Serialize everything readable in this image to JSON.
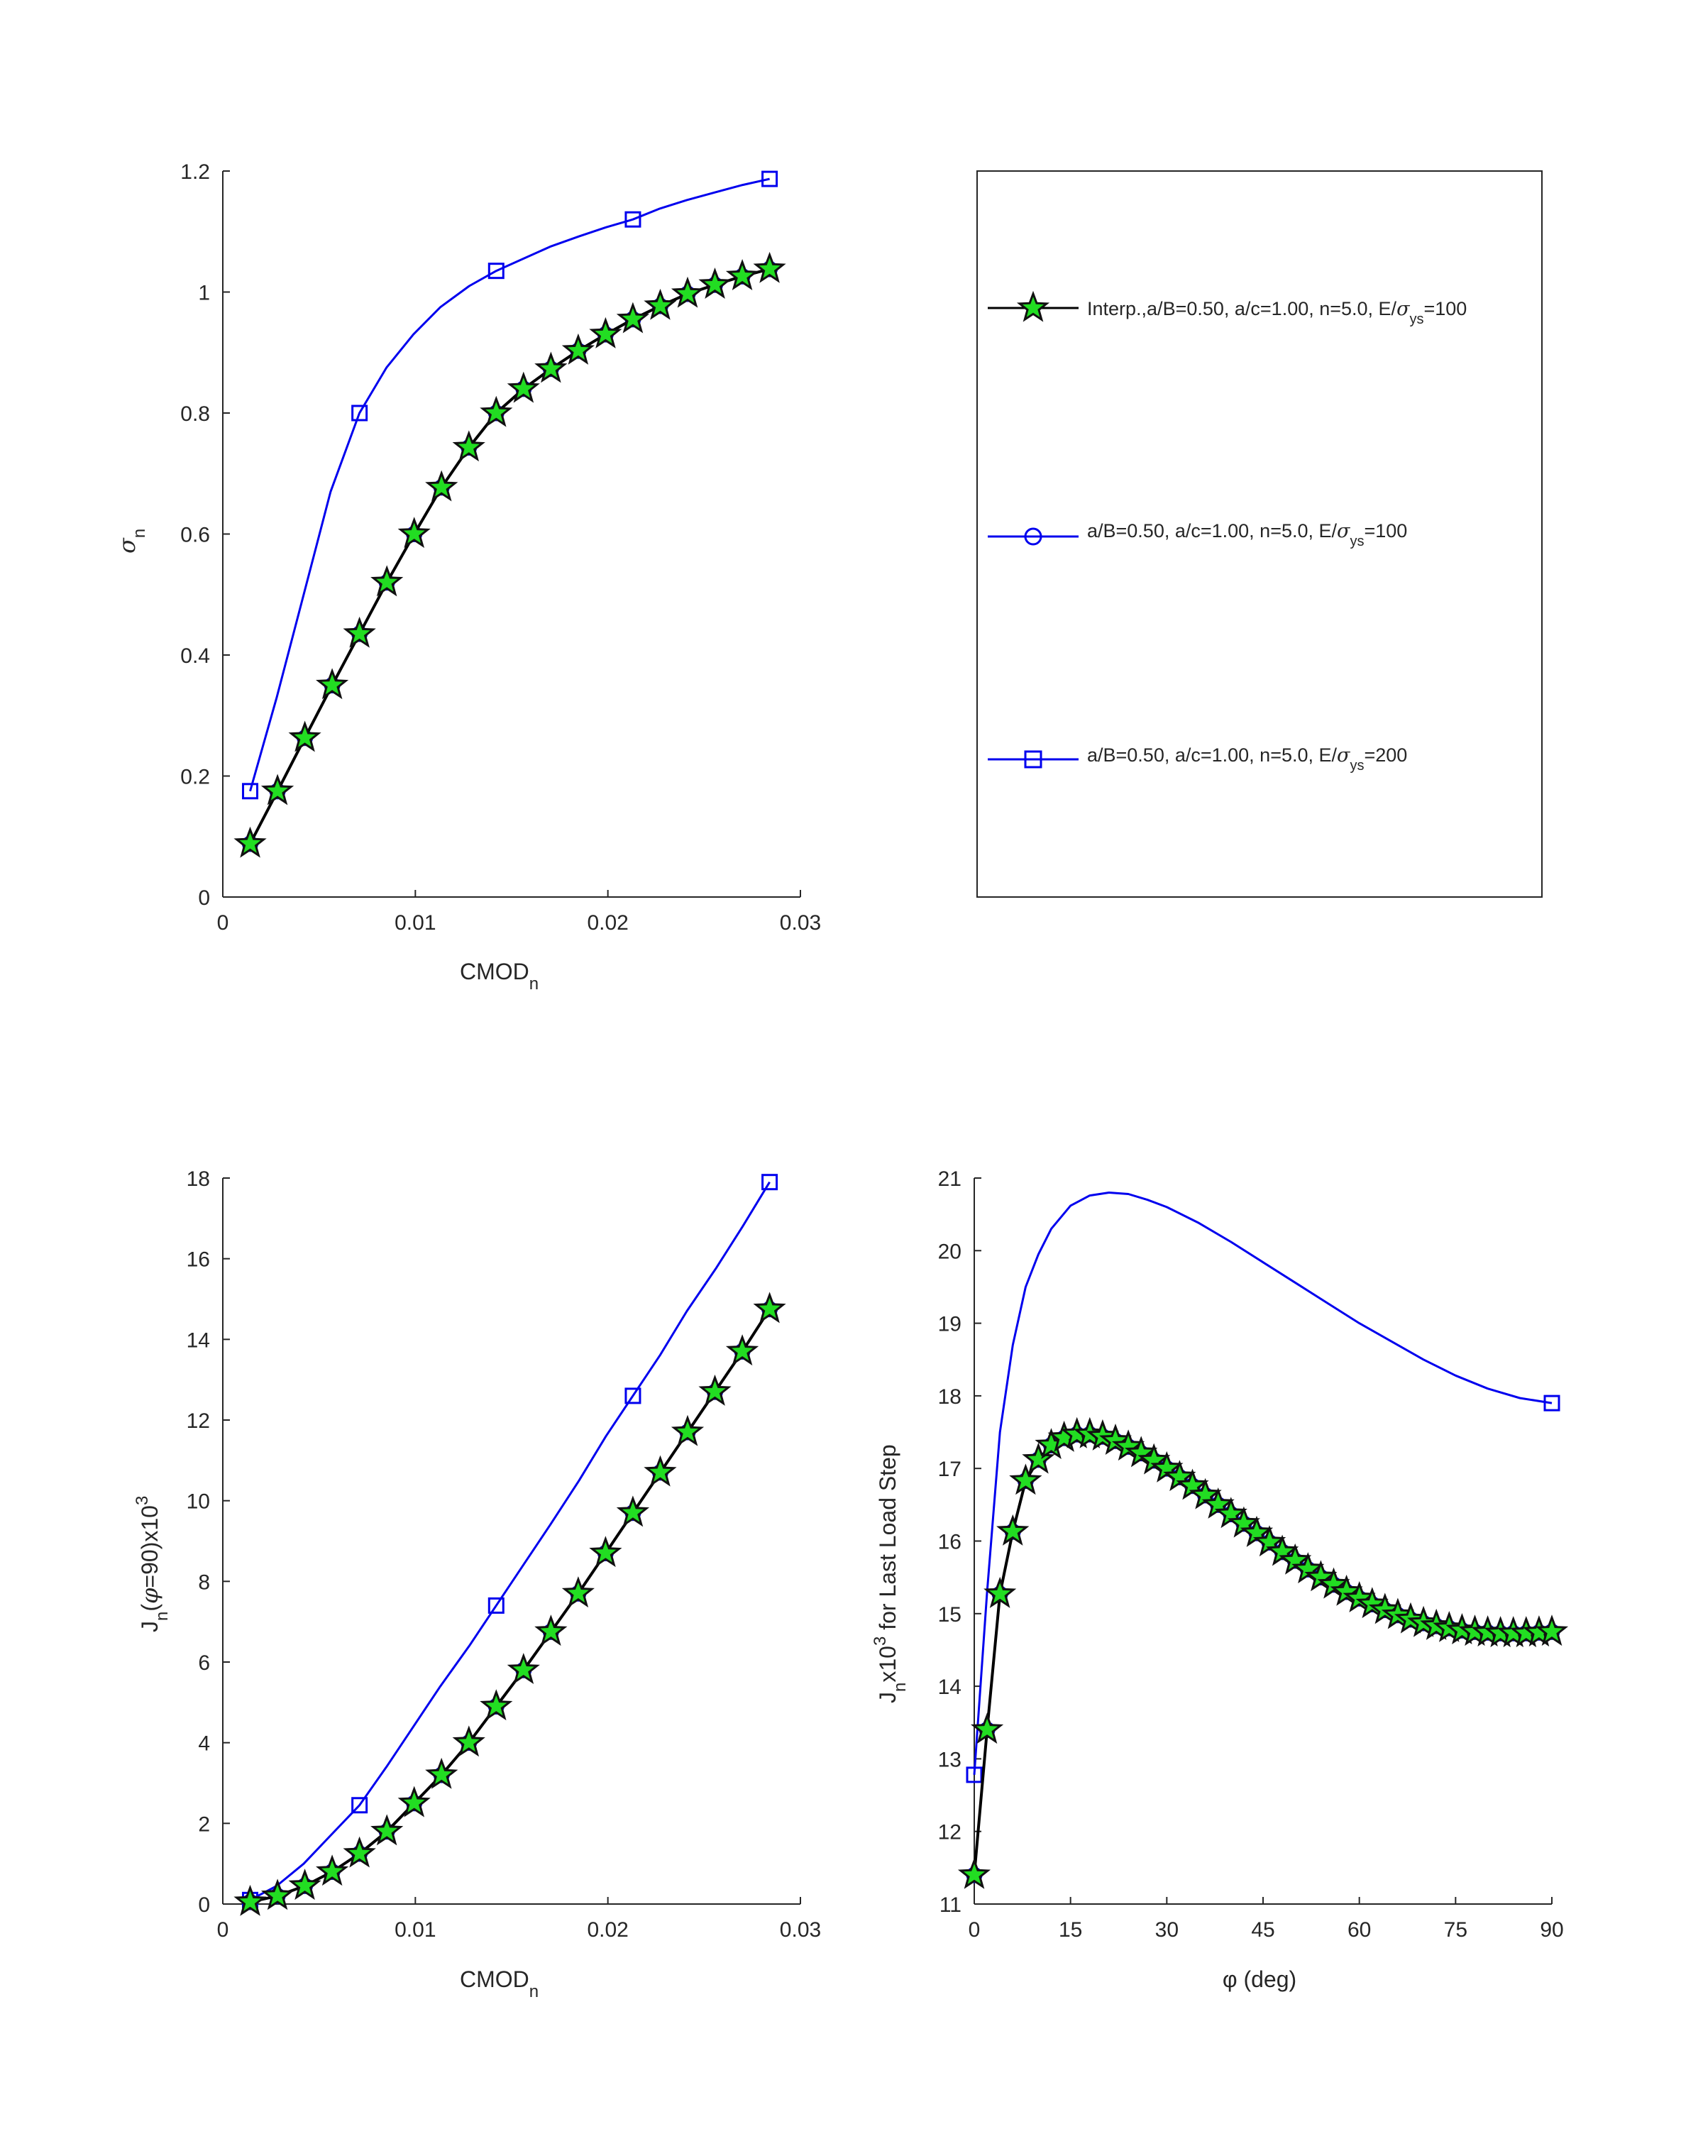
{
  "chart_data": [
    {
      "id": "sigma_vs_cmod",
      "type": "line",
      "xlabel": "CMOD",
      "xlabel_sub": "n",
      "ylabel": "σ",
      "ylabel_sub": "n",
      "xlim": [
        0,
        0.03
      ],
      "ylim": [
        0,
        1.2
      ],
      "xticks": [
        0,
        0.01,
        0.02,
        0.03
      ],
      "xtick_labels": [
        "0",
        "0.01",
        "0.02",
        "0.03"
      ],
      "yticks": [
        0,
        0.2,
        0.4,
        0.6,
        0.8,
        1.0,
        1.2
      ],
      "ytick_labels": [
        "0",
        "0.2",
        "0.4",
        "0.6",
        "0.8",
        "1",
        "1.2"
      ],
      "series": [
        {
          "key": "interp",
          "x": [
            0.00142,
            0.00284,
            0.00426,
            0.00568,
            0.0071,
            0.00852,
            0.00994,
            0.01136,
            0.01278,
            0.0142,
            0.01562,
            0.01704,
            0.01846,
            0.01988,
            0.0213,
            0.02272,
            0.02414,
            0.02556,
            0.02698,
            0.0284
          ],
          "y": [
            0.088,
            0.175,
            0.263,
            0.35,
            0.435,
            0.52,
            0.6,
            0.677,
            0.743,
            0.8,
            0.84,
            0.873,
            0.903,
            0.93,
            0.955,
            0.977,
            0.997,
            1.012,
            1.026,
            1.038
          ]
        },
        {
          "key": "e100",
          "x": [
            0.00142,
            0.00284,
            0.00426,
            0.00568,
            0.0071,
            0.00852,
            0.00994,
            0.01136,
            0.01278,
            0.0142,
            0.01562,
            0.01704,
            0.01846,
            0.01988,
            0.0213,
            0.02272,
            0.02414,
            0.02556,
            0.02698,
            0.0284
          ],
          "y": [
            0.088,
            0.175,
            0.263,
            0.35,
            0.435,
            0.52,
            0.6,
            0.677,
            0.743,
            0.8,
            0.84,
            0.873,
            0.903,
            0.93,
            0.955,
            0.977,
            0.997,
            1.012,
            1.026,
            1.038
          ]
        },
        {
          "key": "e200",
          "x": [
            0.00142,
            0.0071,
            0.0142,
            0.0213,
            0.0284
          ],
          "y": [
            0.175,
            0.8,
            1.035,
            1.12,
            1.187
          ],
          "curve_x": [
            0.00142,
            0.0028,
            0.0042,
            0.0056,
            0.0071,
            0.0085,
            0.0099,
            0.0113,
            0.0128,
            0.0142,
            0.0156,
            0.017,
            0.0185,
            0.0199,
            0.0213,
            0.0227,
            0.0241,
            0.0256,
            0.027,
            0.0284
          ],
          "curve_y": [
            0.175,
            0.33,
            0.5,
            0.67,
            0.8,
            0.875,
            0.93,
            0.975,
            1.01,
            1.035,
            1.055,
            1.075,
            1.092,
            1.107,
            1.12,
            1.138,
            1.152,
            1.165,
            1.177,
            1.187
          ]
        }
      ]
    },
    {
      "id": "J90_vs_cmod",
      "type": "line",
      "xlabel": "CMOD",
      "xlabel_sub": "n",
      "ylabel_parts": [
        "J",
        "n",
        "(",
        "φ",
        "=90)x10",
        "3"
      ],
      "xlim": [
        0,
        0.03
      ],
      "ylim": [
        0,
        18
      ],
      "xticks": [
        0,
        0.01,
        0.02,
        0.03
      ],
      "xtick_labels": [
        "0",
        "0.01",
        "0.02",
        "0.03"
      ],
      "yticks": [
        0,
        2,
        4,
        6,
        8,
        10,
        12,
        14,
        16,
        18
      ],
      "ytick_labels": [
        "0",
        "2",
        "4",
        "6",
        "8",
        "10",
        "12",
        "14",
        "16",
        "18"
      ],
      "series": [
        {
          "key": "interp",
          "x": [
            0.00142,
            0.00284,
            0.00426,
            0.00568,
            0.0071,
            0.00852,
            0.00994,
            0.01136,
            0.01278,
            0.0142,
            0.01562,
            0.01704,
            0.01846,
            0.01988,
            0.0213,
            0.02272,
            0.02414,
            0.02556,
            0.02698,
            0.0284
          ],
          "y": [
            0.05,
            0.2,
            0.45,
            0.8,
            1.25,
            1.8,
            2.5,
            3.2,
            4.0,
            4.9,
            5.8,
            6.75,
            7.7,
            8.7,
            9.7,
            10.7,
            11.7,
            12.7,
            13.7,
            14.75
          ]
        },
        {
          "key": "e100",
          "x": [
            0.00142,
            0.00284,
            0.00426,
            0.00568,
            0.0071,
            0.00852,
            0.00994,
            0.01136,
            0.01278,
            0.0142,
            0.01562,
            0.01704,
            0.01846,
            0.01988,
            0.0213,
            0.02272,
            0.02414,
            0.02556,
            0.02698,
            0.0284
          ],
          "y": [
            0.05,
            0.2,
            0.45,
            0.8,
            1.25,
            1.8,
            2.5,
            3.2,
            4.0,
            4.9,
            5.8,
            6.75,
            7.7,
            8.7,
            9.7,
            10.7,
            11.7,
            12.7,
            13.7,
            14.75
          ]
        },
        {
          "key": "e200",
          "x": [
            0.00142,
            0.0071,
            0.0142,
            0.0213,
            0.0284
          ],
          "y": [
            0.1,
            2.45,
            7.4,
            12.6,
            17.9
          ],
          "curve_x": [
            0.00142,
            0.0028,
            0.0042,
            0.0056,
            0.0071,
            0.0085,
            0.0099,
            0.0113,
            0.0128,
            0.0142,
            0.0156,
            0.017,
            0.0185,
            0.0199,
            0.0213,
            0.0227,
            0.0241,
            0.0256,
            0.027,
            0.0284
          ],
          "curve_y": [
            0.1,
            0.45,
            1.0,
            1.7,
            2.45,
            3.4,
            4.4,
            5.4,
            6.4,
            7.4,
            8.4,
            9.4,
            10.5,
            11.6,
            12.6,
            13.6,
            14.7,
            15.75,
            16.8,
            17.9
          ]
        }
      ]
    },
    {
      "id": "J_vs_phi",
      "type": "line",
      "xlabel": "φ (deg)",
      "ylabel_parts": [
        "J",
        "n",
        "x10",
        "3",
        " for Last Load Step"
      ],
      "xlim": [
        0,
        90
      ],
      "ylim": [
        11,
        21
      ],
      "xticks": [
        0,
        15,
        30,
        45,
        60,
        75,
        90
      ],
      "xtick_labels": [
        "0",
        "15",
        "30",
        "45",
        "60",
        "75",
        "90"
      ],
      "yticks": [
        11,
        12,
        13,
        14,
        15,
        16,
        17,
        18,
        19,
        20,
        21
      ],
      "ytick_labels": [
        "11",
        "12",
        "13",
        "14",
        "15",
        "16",
        "17",
        "18",
        "19",
        "20",
        "21"
      ],
      "series": [
        {
          "key": "interp",
          "x": [
            0,
            2,
            4,
            6,
            8,
            10,
            12,
            14,
            16,
            18,
            20,
            22,
            24,
            26,
            28,
            30,
            32,
            34,
            36,
            38,
            40,
            42,
            44,
            46,
            48,
            50,
            52,
            54,
            56,
            58,
            60,
            62,
            64,
            66,
            68,
            70,
            72,
            74,
            76,
            78,
            80,
            82,
            84,
            86,
            88,
            90
          ],
          "y": [
            11.4,
            13.4,
            15.27,
            16.13,
            16.83,
            17.12,
            17.32,
            17.42,
            17.47,
            17.47,
            17.44,
            17.38,
            17.3,
            17.21,
            17.11,
            17.0,
            16.88,
            16.76,
            16.63,
            16.5,
            16.37,
            16.24,
            16.11,
            15.98,
            15.85,
            15.73,
            15.61,
            15.5,
            15.4,
            15.3,
            15.21,
            15.13,
            15.05,
            14.98,
            14.92,
            14.87,
            14.83,
            14.8,
            14.77,
            14.75,
            14.74,
            14.73,
            14.73,
            14.73,
            14.74,
            14.75
          ]
        },
        {
          "key": "e100",
          "x": [
            0,
            2,
            4,
            6,
            8,
            10,
            12,
            14,
            16,
            18,
            20,
            22,
            24,
            26,
            28,
            30,
            32,
            34,
            36,
            38,
            40,
            42,
            44,
            46,
            48,
            50,
            52,
            54,
            56,
            58,
            60,
            62,
            64,
            66,
            68,
            70,
            72,
            74,
            76,
            78,
            80,
            82,
            84,
            86,
            88,
            90
          ],
          "y": [
            11.4,
            13.4,
            15.27,
            16.13,
            16.83,
            17.12,
            17.32,
            17.42,
            17.47,
            17.47,
            17.44,
            17.38,
            17.3,
            17.21,
            17.11,
            17.0,
            16.88,
            16.76,
            16.63,
            16.5,
            16.37,
            16.24,
            16.11,
            15.98,
            15.85,
            15.73,
            15.61,
            15.5,
            15.4,
            15.3,
            15.21,
            15.13,
            15.05,
            14.98,
            14.92,
            14.87,
            14.83,
            14.8,
            14.77,
            14.75,
            14.74,
            14.73,
            14.73,
            14.73,
            14.74,
            14.75
          ]
        },
        {
          "key": "e200",
          "x": [
            0,
            90
          ],
          "y": [
            12.78,
            17.9
          ],
          "curve_x": [
            0,
            2,
            4,
            6,
            8,
            10,
            12,
            15,
            18,
            21,
            24,
            27,
            30,
            35,
            40,
            45,
            50,
            55,
            60,
            65,
            70,
            75,
            80,
            85,
            90
          ],
          "curve_y": [
            12.78,
            15.3,
            17.5,
            18.7,
            19.5,
            19.95,
            20.3,
            20.62,
            20.76,
            20.8,
            20.78,
            20.7,
            20.6,
            20.38,
            20.12,
            19.84,
            19.56,
            19.28,
            19.0,
            18.75,
            18.5,
            18.28,
            18.1,
            17.97,
            17.9
          ]
        }
      ]
    }
  ],
  "legend": {
    "placement": "top-right",
    "entries": [
      {
        "key": "interp",
        "prefix": "Interp.,a/B=0.50, a/c=1.00, n=5.0, E/",
        "greek": "σ",
        "sub": "ys",
        "suffix": "=100",
        "marker": "star"
      },
      {
        "key": "e100",
        "prefix": "a/B=0.50, a/c=1.00, n=5.0, E/",
        "greek": "σ",
        "sub": "ys",
        "suffix": "=100",
        "marker": "circle"
      },
      {
        "key": "e200",
        "prefix": "a/B=0.50, a/c=1.00, n=5.0, E/",
        "greek": "σ",
        "sub": "ys",
        "suffix": "=200",
        "marker": "square"
      }
    ]
  },
  "colors": {
    "line": "#0000ee",
    "star_fill": "#22dd22",
    "star_edge": "#111111",
    "axis": "#262626"
  }
}
